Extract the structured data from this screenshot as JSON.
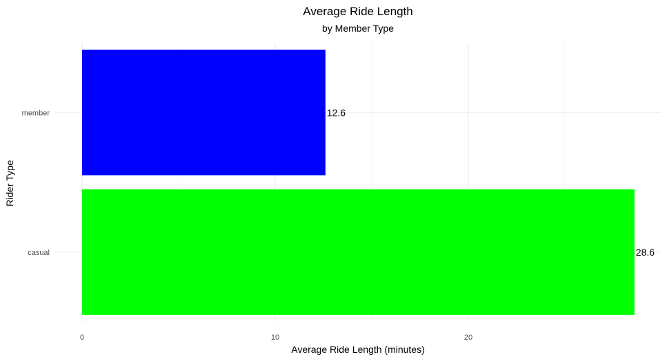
{
  "chart_data": {
    "type": "bar",
    "orientation": "horizontal",
    "title": "Average Ride Length",
    "subtitle": "by Member Type",
    "xlabel": "Average Ride Length (minutes)",
    "ylabel": "Rider Type",
    "categories": [
      "casual",
      "member"
    ],
    "values": [
      28.6,
      12.6
    ],
    "value_labels": [
      "28.6",
      "12.6"
    ],
    "bar_colors": [
      "#00ff00",
      "#0000ff"
    ],
    "xlim": [
      0,
      30
    ],
    "x_ticks": [
      0,
      10,
      20
    ],
    "x_tick_labels": [
      "0",
      "10",
      "20"
    ],
    "grid": true,
    "legend": "none"
  }
}
